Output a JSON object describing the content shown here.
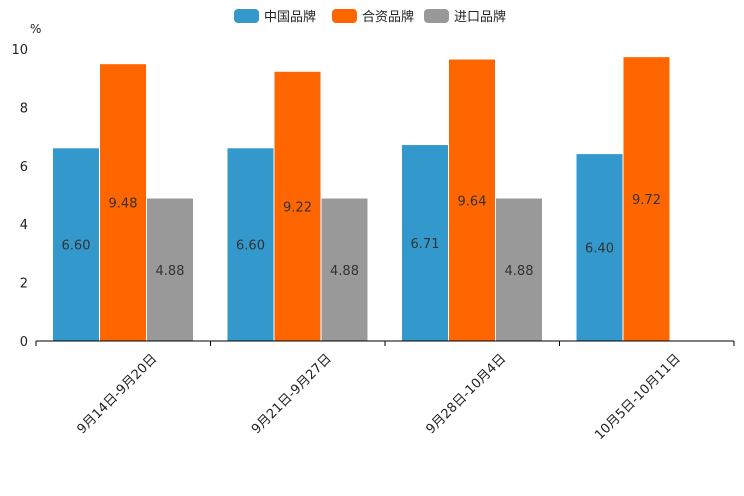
{
  "chart_data": {
    "type": "bar",
    "title": "",
    "ylabel": "%",
    "xlabel": "",
    "ylim": [
      0,
      10
    ],
    "yticks": [
      0,
      2,
      4,
      6,
      8,
      10
    ],
    "legend_position": "top-center",
    "grid": false,
    "categories": [
      "9月14日-9月20日",
      "9月21日-9月27日",
      "9月28日-10月4日",
      "10月5日-10月11日"
    ],
    "series": [
      {
        "name": "中国品牌",
        "color": "#3399cc",
        "values": [
          6.6,
          6.6,
          6.71,
          6.4
        ],
        "labels": [
          "6.60",
          "6.60",
          "6.71",
          "6.40"
        ]
      },
      {
        "name": "合资品牌",
        "color": "#ff6600",
        "values": [
          9.48,
          9.22,
          9.64,
          9.72
        ],
        "labels": [
          "9.48",
          "9.22",
          "9.64",
          "9.72"
        ]
      },
      {
        "name": "进口品牌",
        "color": "#999999",
        "values": [
          4.88,
          4.88,
          4.88,
          null
        ],
        "labels": [
          "4.88",
          "4.88",
          "4.88",
          null
        ]
      }
    ]
  }
}
